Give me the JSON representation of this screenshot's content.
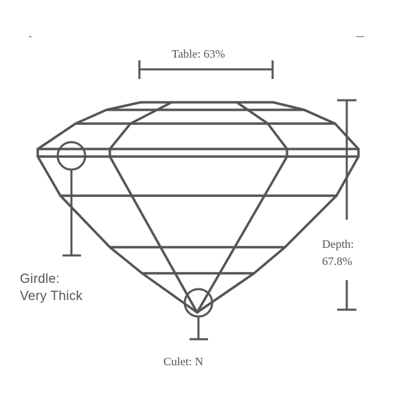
{
  "diagram": {
    "table": {
      "label": "Table: 63%"
    },
    "depth": {
      "label_line1": "Depth:",
      "label_line2": "67.8%"
    },
    "culet": {
      "label": "Culet: N"
    },
    "girdle": {
      "label_line1": "Girdle:",
      "label_line2": "Very Thick"
    },
    "colors": {
      "stroke": "#555555",
      "background": "#ffffff"
    }
  }
}
